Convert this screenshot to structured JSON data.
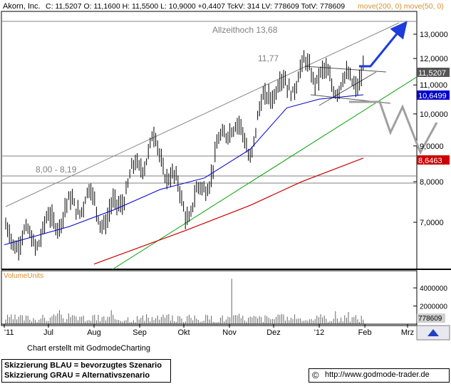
{
  "header": {
    "symbol": "Akorn, Inc.",
    "quote": "C: 11,5207 O: 11,1600 H: 11,5500 L: 10,9000 +0,4407 TckV: 314 LV: 778609 TotV: 778609",
    "ma_label": "move(200, 0) move(50, 0)"
  },
  "colors": {
    "price": "#000000",
    "ma50": "#0000cc",
    "ma200": "#cc0000",
    "trend_green": "#00a000",
    "scenario_blue": "#1e3cdc",
    "scenario_gray": "#a0a0a0",
    "ma_label": "#d89030",
    "volume_label": "#d89030",
    "badge_price": "#555555",
    "badge_ma50": "#0000cc",
    "badge_ma200": "#cc0000"
  },
  "annotations": {
    "ath_label": "Allzeithoch 13,68",
    "peak_label": "11,77",
    "support_label": "8,00 - 8,19"
  },
  "badges": {
    "price": "11,5207",
    "ma50": "10,6499",
    "ma200": "8,6463",
    "volume": "778609"
  },
  "volume_title": "VolumeUnits",
  "footer": {
    "credit": "Chart erstellt mit GodmodeCharting",
    "legend_blue": "Skizzierung BLAU = bevorzugtes Szenario",
    "legend_gray": "Skizzierung GRAU = Alternativszenario",
    "url": "http://www.godmode-trader.de"
  },
  "chart_data": {
    "type": "line",
    "title": "Akorn, Inc.",
    "y_scale": "log",
    "ylim": [
      6.0,
      14.5
    ],
    "y_ticks": [
      "13,0000",
      "12,0000",
      "11,0000",
      "10,0000",
      "9,0000",
      "8,0000",
      "7,0000"
    ],
    "y_tick_values": [
      13,
      12,
      11,
      10,
      9,
      8,
      7
    ],
    "x_ticks": [
      "'11",
      "Jul",
      "Aug",
      "Sep",
      "Okt",
      "Nov",
      "Dez",
      "'12",
      "Feb",
      "Mrz"
    ],
    "x_tick_dates": [
      "2011-06-01",
      "2011-07-01",
      "2011-08-01",
      "2011-09-01",
      "2011-10-01",
      "2011-11-01",
      "2011-12-01",
      "2012-01-01",
      "2012-02-01",
      "2012-03-01"
    ],
    "x_range": [
      "2011-06-01",
      "2012-03-01"
    ],
    "series": [
      {
        "name": "Akorn, Inc.",
        "x": [
          "2011-06-01",
          "2011-06-20",
          "2011-07-10",
          "2011-07-28",
          "2011-08-10",
          "2011-08-25",
          "2011-09-10",
          "2011-09-25",
          "2011-10-05",
          "2011-10-20",
          "2011-11-01",
          "2011-11-15",
          "2011-11-28",
          "2011-12-10",
          "2011-12-25",
          "2012-01-05",
          "2012-01-20",
          "2012-01-31"
        ],
        "values": [
          6.7,
          6.6,
          7.2,
          7.6,
          7.0,
          8.0,
          9.1,
          7.9,
          7.2,
          8.3,
          9.8,
          8.9,
          10.9,
          10.9,
          11.7,
          11.2,
          11.0,
          11.5207
        ]
      },
      {
        "name": "move(50, 0)",
        "x": [
          "2011-06-01",
          "2011-07-15",
          "2011-08-15",
          "2011-09-15",
          "2011-10-15",
          "2011-11-15",
          "2011-12-10",
          "2012-01-01",
          "2012-01-31"
        ],
        "values": [
          6.5,
          6.9,
          7.3,
          7.8,
          8.1,
          8.9,
          10.2,
          10.5,
          10.6499
        ]
      },
      {
        "name": "move(200, 0)",
        "x": [
          "2011-08-01",
          "2011-10-01",
          "2011-11-15",
          "2011-12-20",
          "2012-01-31"
        ],
        "values": [
          6.1,
          6.8,
          7.4,
          8.0,
          8.6463
        ]
      }
    ],
    "volume_axis_ticks": [
      "4000000",
      "2000000"
    ],
    "volume_ylim": [
      0,
      5500000
    ],
    "volume_last": 778609,
    "grid": false,
    "legend": "top-left"
  }
}
